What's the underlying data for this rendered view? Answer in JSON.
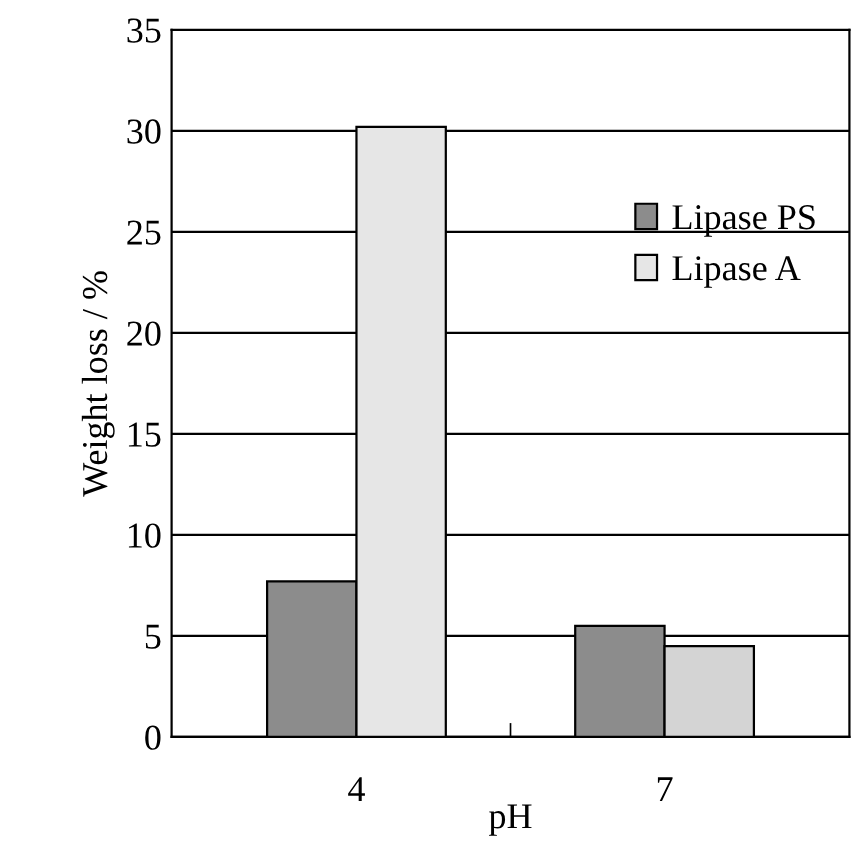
{
  "chart_data": {
    "type": "bar",
    "xlabel": "pH",
    "ylabel": "Weight loss / %",
    "categories": [
      "4",
      "7"
    ],
    "series": [
      {
        "name": "Lipase PS",
        "color": "#8c8c8c",
        "values": [
          7.7,
          5.5
        ]
      },
      {
        "name": "Lipase A",
        "colors": [
          "#e6e6e6",
          "#d4d4d4"
        ],
        "values": [
          30.2,
          4.5
        ]
      }
    ],
    "ylim": [
      0,
      35
    ],
    "yticks": [
      0,
      5,
      10,
      15,
      20,
      25,
      30,
      35
    ],
    "grid": "y",
    "legend": "top right"
  }
}
